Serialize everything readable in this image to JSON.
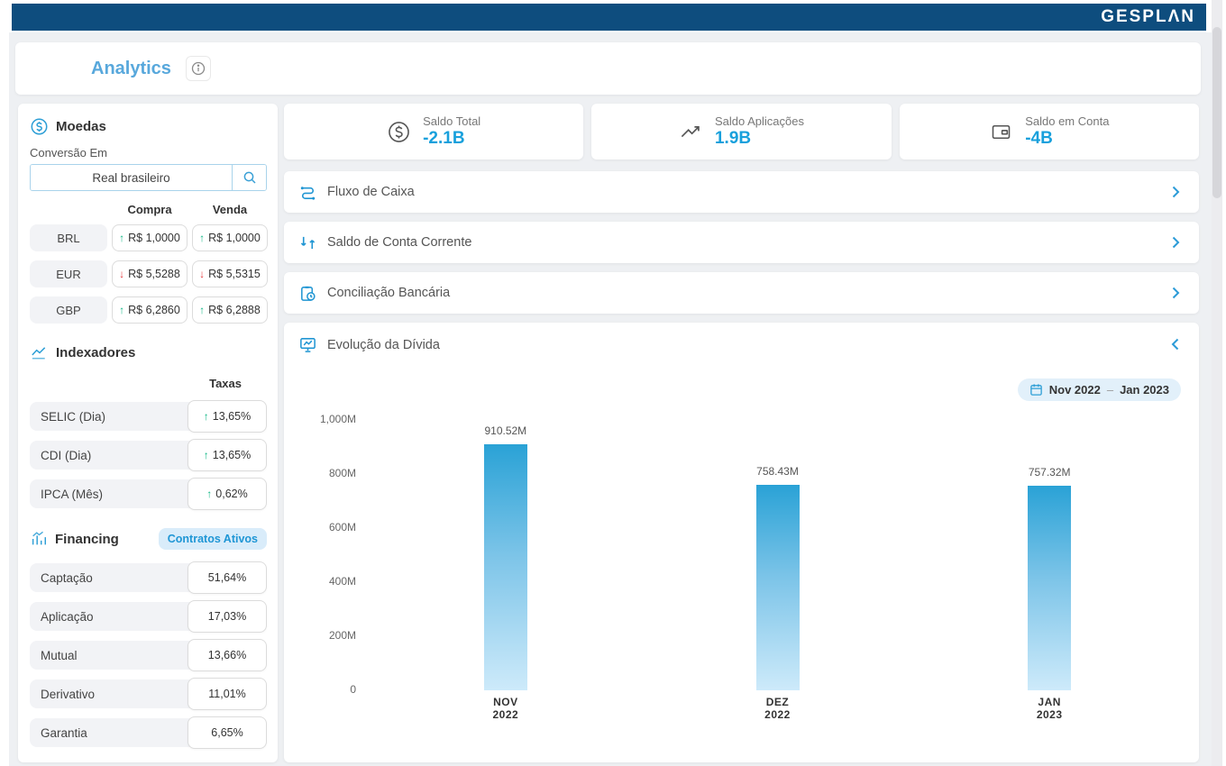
{
  "brand": {
    "logo": "GESPLΛN"
  },
  "page": {
    "title": "Analytics"
  },
  "sidebar": {
    "moedas": {
      "title": "Moedas",
      "conversion_label": "Conversão Em",
      "conversion_value": "Real brasileiro",
      "col_compra": "Compra",
      "col_venda": "Venda",
      "rows": [
        {
          "code": "BRL",
          "compra": "R$ 1,0000",
          "compra_dir": "up",
          "venda": "R$ 1,0000",
          "venda_dir": "up"
        },
        {
          "code": "EUR",
          "compra": "R$ 5,5288",
          "compra_dir": "down",
          "venda": "R$ 5,5315",
          "venda_dir": "down"
        },
        {
          "code": "GBP",
          "compra": "R$ 6,2860",
          "compra_dir": "up",
          "venda": "R$ 6,2888",
          "venda_dir": "up"
        }
      ]
    },
    "indexadores": {
      "title": "Indexadores",
      "col_taxas": "Taxas",
      "rows": [
        {
          "label": "SELIC (Dia)",
          "value": "13,65%",
          "dir": "up"
        },
        {
          "label": "CDI (Dia)",
          "value": "13,65%",
          "dir": "up"
        },
        {
          "label": "IPCA (Mês)",
          "value": "0,62%",
          "dir": "up"
        }
      ]
    },
    "financing": {
      "title": "Financing",
      "badge": "Contratos Ativos",
      "rows": [
        {
          "label": "Captação",
          "value": "51,64%"
        },
        {
          "label": "Aplicação",
          "value": "17,03%"
        },
        {
          "label": "Mutual",
          "value": "13,66%"
        },
        {
          "label": "Derivativo",
          "value": "11,01%"
        },
        {
          "label": "Garantia",
          "value": "6,65%"
        }
      ]
    }
  },
  "kpis": [
    {
      "label": "Saldo Total",
      "value": "-2.1B",
      "icon": "dollar-circle-icon"
    },
    {
      "label": "Saldo Aplicações",
      "value": "1.9B",
      "icon": "trending-up-icon"
    },
    {
      "label": "Saldo em Conta",
      "value": "-4B",
      "icon": "wallet-icon"
    }
  ],
  "sections": [
    {
      "label": "Fluxo de Caixa",
      "state": "collapsed"
    },
    {
      "label": "Saldo de Conta Corrente",
      "state": "collapsed"
    },
    {
      "label": "Conciliação Bancária",
      "state": "collapsed"
    },
    {
      "label": "Evolução da Dívida",
      "state": "expanded"
    }
  ],
  "date_filter": {
    "start": "Nov 2022",
    "separator": "–",
    "end": "Jan 2023"
  },
  "chart_data": {
    "type": "bar",
    "title": "Evolução da Dívida",
    "categories": [
      "NOV 2022",
      "DEZ 2022",
      "JAN 2023"
    ],
    "values": [
      910.52,
      758.43,
      757.32
    ],
    "value_labels": [
      "910.52M",
      "758.43M",
      "757.32M"
    ],
    "unit": "M",
    "xlabel": "",
    "ylabel": "",
    "ylim": [
      0,
      1000
    ],
    "yticks": [
      "1,000M",
      "800M",
      "600M",
      "400M",
      "200M",
      "0"
    ],
    "grid": false,
    "legend": false,
    "bar_color_top": "#2aa2d6",
    "bar_color_bottom": "#cdeafa"
  },
  "colors": {
    "navbar": "#0e4d7e",
    "accent": "#2196d3",
    "kpi_value": "#18a0dc",
    "positive": "#12b886",
    "negative": "#e5383b",
    "background": "#eef0f3"
  }
}
